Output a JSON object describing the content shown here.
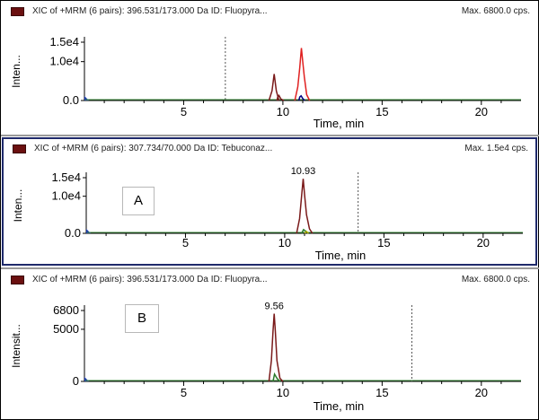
{
  "chart_data": [
    {
      "type": "line",
      "header": "XIC of +MRM (6 pairs): 396.531/173.000 Da ID: Fluopyra...",
      "max_label": "Max. 6800.0 cps.",
      "xlabel": "Time, min",
      "ylabel": "Inten...",
      "xlim": [
        0,
        22
      ],
      "ylim": [
        0,
        15000
      ],
      "x_ticks": [
        "5",
        "10",
        "15",
        "20"
      ],
      "y_ticks": [
        "0.0",
        "1.0e4",
        "1.5e4"
      ],
      "y_tick_values": [
        0,
        10000,
        15000
      ],
      "marker_line_x": 7.1,
      "peak_label": "",
      "panel_label": "",
      "series": [
        {
          "color": "#7a1a1a",
          "points": [
            [
              9.3,
              0
            ],
            [
              9.45,
              2500
            ],
            [
              9.52,
              5200
            ],
            [
              9.56,
              6800
            ],
            [
              9.6,
              5200
            ],
            [
              9.67,
              2500
            ],
            [
              9.8,
              0
            ]
          ]
        },
        {
          "color": "#7a1a1a",
          "points": [
            [
              9.7,
              0
            ],
            [
              9.74,
              900
            ],
            [
              9.8,
              1300
            ],
            [
              9.9,
              400
            ],
            [
              10.05,
              0
            ]
          ]
        },
        {
          "color": "#e02020",
          "points": [
            [
              10.6,
              0
            ],
            [
              10.75,
              3500
            ],
            [
              10.85,
              8500
            ],
            [
              10.93,
              13500
            ],
            [
              11.0,
              10000
            ],
            [
              11.08,
              6000
            ],
            [
              11.2,
              1500
            ],
            [
              11.35,
              0
            ]
          ]
        },
        {
          "color": "#000080",
          "points": [
            [
              10.8,
              0
            ],
            [
              10.85,
              900
            ],
            [
              10.92,
              1200
            ],
            [
              11.0,
              500
            ],
            [
              11.1,
              0
            ]
          ]
        }
      ]
    },
    {
      "type": "line",
      "header": "XIC of +MRM (6 pairs): 307.734/70.000 Da ID: Tebuconaz...",
      "max_label": "Max. 1.5e4 cps.",
      "xlabel": "Time, min",
      "ylabel": "Inten...",
      "xlim": [
        0,
        22
      ],
      "ylim": [
        0,
        15000
      ],
      "x_ticks": [
        "5",
        "10",
        "15",
        "20"
      ],
      "y_ticks": [
        "0.0",
        "1.0e4",
        "1.5e4"
      ],
      "y_tick_values": [
        0,
        10000,
        15000
      ],
      "marker_line_x": 13.7,
      "peak_label": "10.93",
      "panel_label": "A",
      "series": [
        {
          "color": "#7a1a1a",
          "points": [
            [
              10.6,
              0
            ],
            [
              10.75,
              4000
            ],
            [
              10.85,
              10000
            ],
            [
              10.93,
              14700
            ],
            [
              11.0,
              10500
            ],
            [
              11.1,
              5000
            ],
            [
              11.25,
              1200
            ],
            [
              11.4,
              0
            ]
          ]
        },
        {
          "color": "#2a7a2a",
          "points": [
            [
              10.85,
              0
            ],
            [
              10.95,
              1000
            ],
            [
              11.05,
              600
            ],
            [
              11.2,
              0
            ]
          ]
        },
        {
          "color": "#b0b000",
          "points": [
            [
              11.0,
              0
            ],
            [
              11.1,
              500
            ],
            [
              11.2,
              0
            ]
          ]
        }
      ]
    },
    {
      "type": "line",
      "header": "XIC of +MRM (6 pairs): 396.531/173.000 Da ID: Fluopyra...",
      "max_label": "Max. 6800.0 cps.",
      "xlabel": "Time, min",
      "ylabel": "Intensit...",
      "xlim": [
        0,
        22
      ],
      "ylim": [
        0,
        6800
      ],
      "x_ticks": [
        "5",
        "10",
        "15",
        "20"
      ],
      "y_ticks": [
        "0",
        "5000",
        "6800"
      ],
      "y_tick_values": [
        0,
        5000,
        6800
      ],
      "marker_line_x": 16.5,
      "peak_label": "9.56",
      "panel_label": "B",
      "series": [
        {
          "color": "#7a1a1a",
          "points": [
            [
              9.3,
              0
            ],
            [
              9.42,
              2000
            ],
            [
              9.5,
              4800
            ],
            [
              9.56,
              6500
            ],
            [
              9.62,
              4800
            ],
            [
              9.7,
              2000
            ],
            [
              9.85,
              300
            ],
            [
              10.0,
              0
            ]
          ]
        },
        {
          "color": "#2a7a2a",
          "points": [
            [
              9.5,
              0
            ],
            [
              9.58,
              700
            ],
            [
              9.7,
              300
            ],
            [
              9.85,
              0
            ]
          ]
        }
      ]
    }
  ]
}
